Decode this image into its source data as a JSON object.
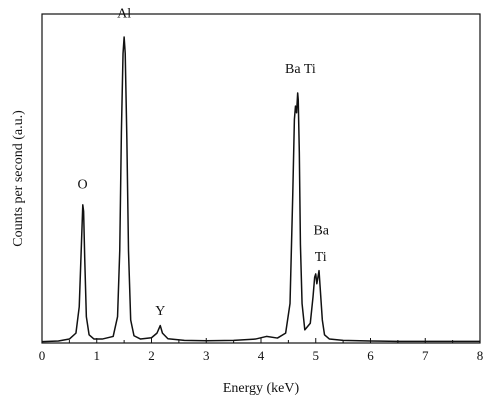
{
  "chart_data": {
    "type": "line",
    "title": "",
    "xlabel": "Energy (keV)",
    "ylabel": "Counts per second (a.u.)",
    "xlim": [
      0,
      8
    ],
    "ylim": [
      0,
      1
    ],
    "xticks": [
      "0",
      "1",
      "2",
      "3",
      "4",
      "5",
      "6",
      "7",
      "8"
    ],
    "yticks_shown": false,
    "grid": false,
    "legend": "none",
    "line_color": "#111111",
    "series": [
      {
        "x": [
          0.0,
          0.3,
          0.5,
          0.62,
          0.68,
          0.72,
          0.745,
          0.76,
          0.78,
          0.81,
          0.86,
          0.95,
          1.1,
          1.3,
          1.38,
          1.42,
          1.45,
          1.48,
          1.5,
          1.52,
          1.55,
          1.58,
          1.62,
          1.68,
          1.8,
          2.0,
          2.1,
          2.16,
          2.2,
          2.3,
          2.6,
          3.0,
          3.5,
          3.9,
          4.1,
          4.3,
          4.45,
          4.53,
          4.58,
          4.61,
          4.63,
          4.65,
          4.67,
          4.68,
          4.7,
          4.72,
          4.75,
          4.8,
          4.9,
          4.95,
          4.98,
          5.0,
          5.02,
          5.04,
          5.06,
          5.08,
          5.12,
          5.16,
          5.25,
          5.5,
          6.0,
          6.5,
          7.0,
          7.5,
          8.0
        ],
        "y": [
          0.004,
          0.006,
          0.012,
          0.03,
          0.11,
          0.3,
          0.42,
          0.4,
          0.26,
          0.08,
          0.025,
          0.012,
          0.012,
          0.02,
          0.08,
          0.28,
          0.64,
          0.88,
          0.93,
          0.88,
          0.62,
          0.28,
          0.07,
          0.022,
          0.012,
          0.016,
          0.03,
          0.053,
          0.03,
          0.013,
          0.008,
          0.007,
          0.008,
          0.012,
          0.02,
          0.015,
          0.03,
          0.12,
          0.45,
          0.68,
          0.72,
          0.7,
          0.76,
          0.74,
          0.58,
          0.3,
          0.12,
          0.04,
          0.06,
          0.14,
          0.2,
          0.21,
          0.18,
          0.2,
          0.22,
          0.17,
          0.07,
          0.025,
          0.012,
          0.008,
          0.006,
          0.005,
          0.005,
          0.005,
          0.005
        ]
      }
    ],
    "annotations": [
      {
        "text": "O",
        "x": 0.74,
        "y": 0.47
      },
      {
        "text": "Al",
        "x": 1.5,
        "y": 0.99
      },
      {
        "text": "Y",
        "x": 2.16,
        "y": 0.085
      },
      {
        "text": "Ba Ti",
        "x": 4.72,
        "y": 0.82
      },
      {
        "text": "Ba",
        "x": 5.1,
        "y": 0.33
      },
      {
        "text": "Ti",
        "x": 5.09,
        "y": 0.25
      }
    ]
  }
}
